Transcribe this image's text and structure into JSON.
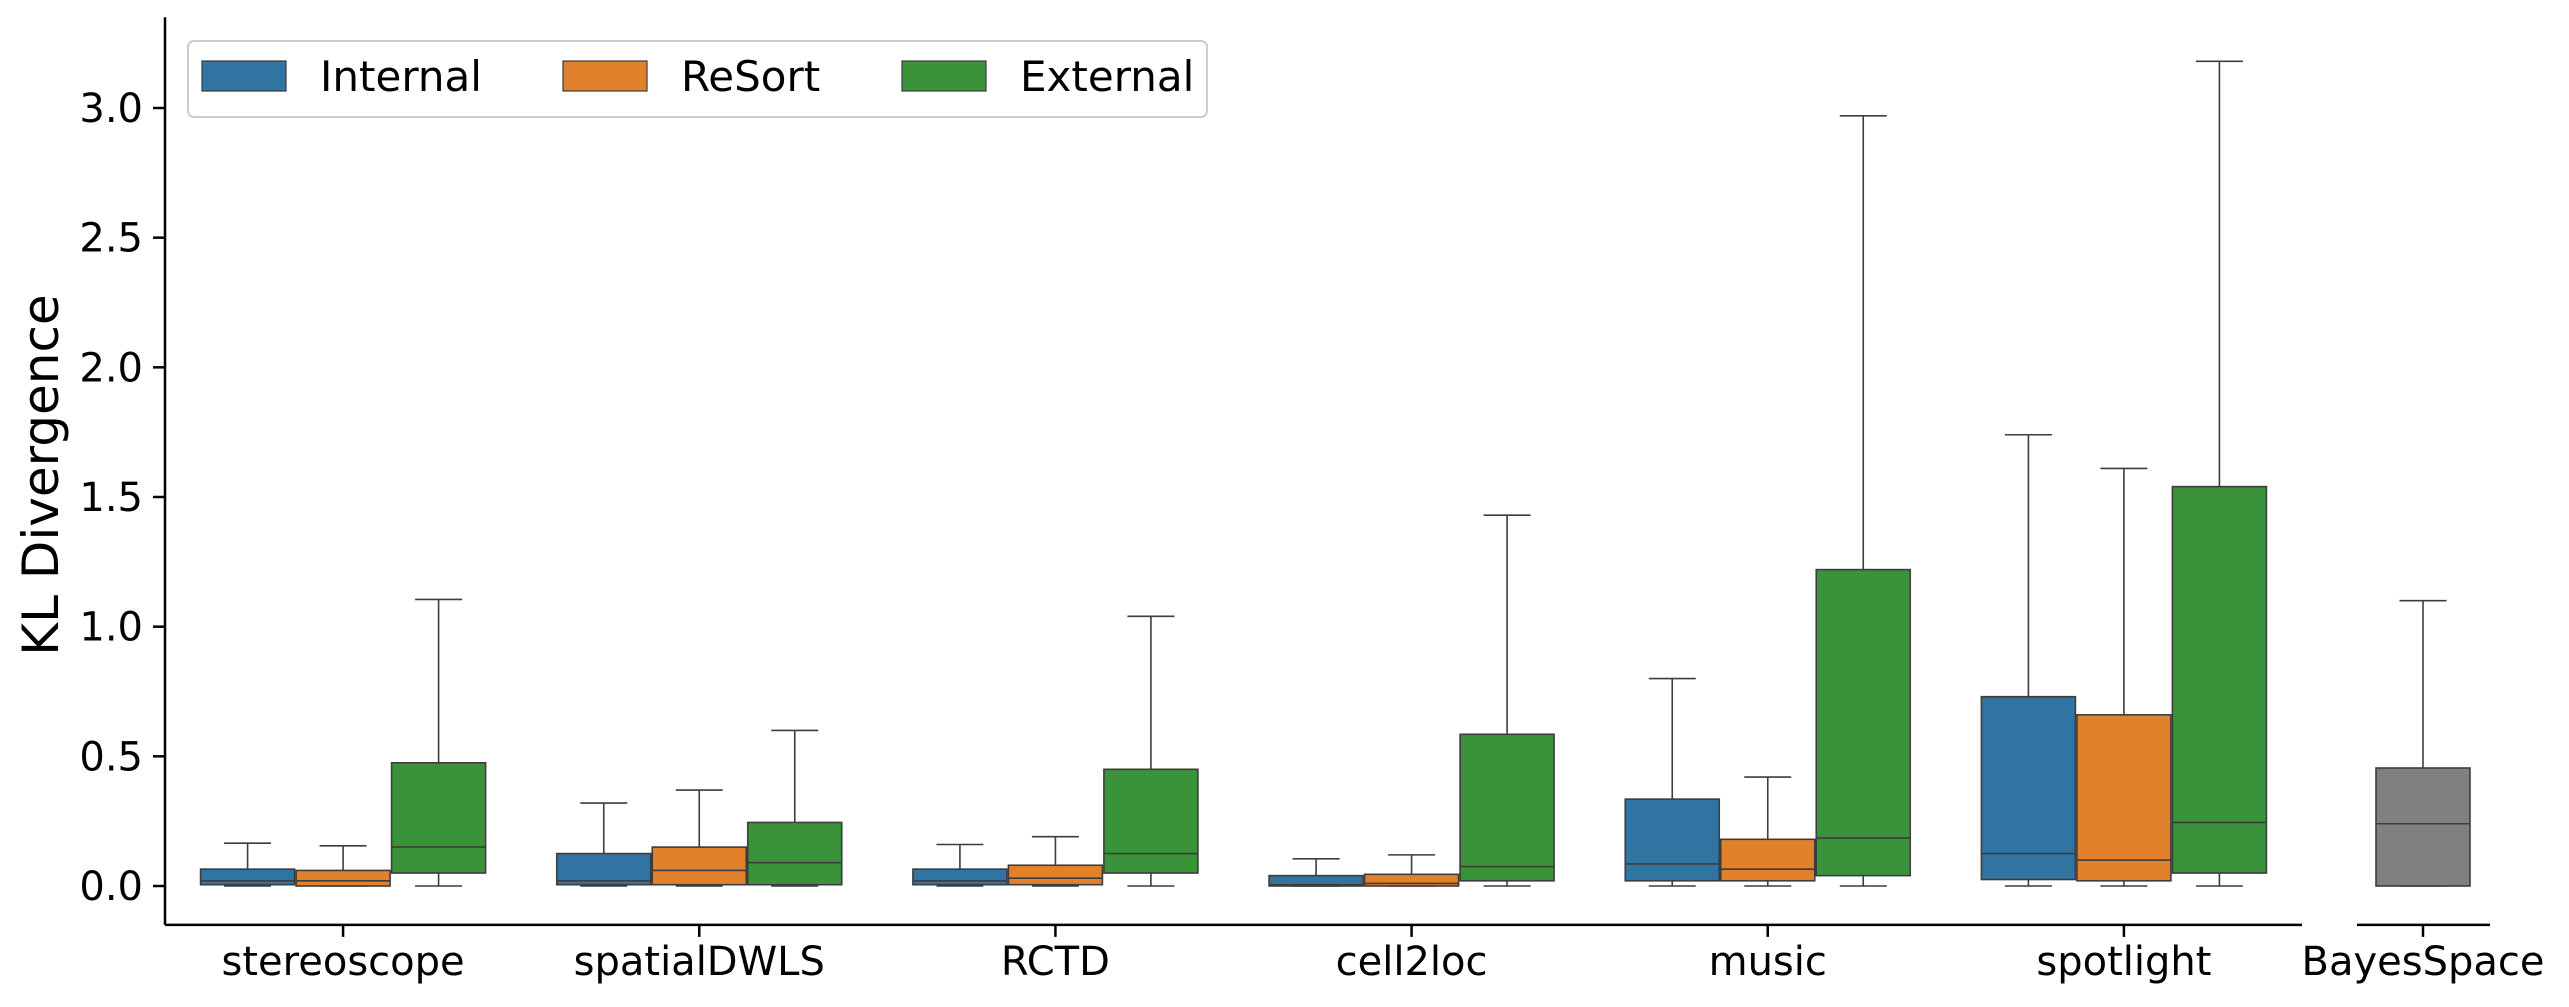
{
  "chart_data": {
    "type": "box",
    "ylabel": "KL Divergence",
    "ylim": [
      -0.15,
      3.35
    ],
    "yticks": [
      "0.0",
      "0.5",
      "1.0",
      "1.5",
      "2.0",
      "2.5",
      "3.0"
    ],
    "ytick_values": [
      0.0,
      0.5,
      1.0,
      1.5,
      2.0,
      2.5,
      3.0
    ],
    "grid": false,
    "legend": {
      "position": "top-left",
      "entries": [
        {
          "name": "Internal",
          "color": "#3274a1"
        },
        {
          "name": "ReSort",
          "color": "#e1812c"
        },
        {
          "name": "External",
          "color": "#3a923a"
        }
      ]
    },
    "categories": [
      "stereoscope",
      "spatialDWLS",
      "RCTD",
      "cell2loc",
      "music",
      "spotlight"
    ],
    "series": [
      {
        "name": "Internal",
        "color": "#3274a1",
        "boxes": [
          {
            "whislo": 0.0,
            "q1": 0.005,
            "med": 0.02,
            "q3": 0.065,
            "whishi": 0.165
          },
          {
            "whislo": 0.0,
            "q1": 0.005,
            "med": 0.02,
            "q3": 0.125,
            "whishi": 0.32
          },
          {
            "whislo": 0.0,
            "q1": 0.005,
            "med": 0.02,
            "q3": 0.065,
            "whishi": 0.16
          },
          {
            "whislo": 0.0,
            "q1": 0.0,
            "med": 0.005,
            "q3": 0.04,
            "whishi": 0.105
          },
          {
            "whislo": 0.0,
            "q1": 0.02,
            "med": 0.085,
            "q3": 0.335,
            "whishi": 0.8
          },
          {
            "whislo": 0.0,
            "q1": 0.025,
            "med": 0.125,
            "q3": 0.73,
            "whishi": 1.74
          }
        ]
      },
      {
        "name": "ReSort",
        "color": "#e1812c",
        "boxes": [
          {
            "whislo": 0.0,
            "q1": 0.0,
            "med": 0.02,
            "q3": 0.06,
            "whishi": 0.155
          },
          {
            "whislo": 0.0,
            "q1": 0.005,
            "med": 0.06,
            "q3": 0.15,
            "whishi": 0.37
          },
          {
            "whislo": 0.0,
            "q1": 0.005,
            "med": 0.03,
            "q3": 0.08,
            "whishi": 0.19
          },
          {
            "whislo": 0.0,
            "q1": 0.0,
            "med": 0.01,
            "q3": 0.045,
            "whishi": 0.12
          },
          {
            "whislo": 0.0,
            "q1": 0.02,
            "med": 0.065,
            "q3": 0.18,
            "whishi": 0.42
          },
          {
            "whislo": 0.0,
            "q1": 0.02,
            "med": 0.1,
            "q3": 0.66,
            "whishi": 1.61
          }
        ]
      },
      {
        "name": "External",
        "color": "#3a923a",
        "boxes": [
          {
            "whislo": 0.0,
            "q1": 0.05,
            "med": 0.15,
            "q3": 0.475,
            "whishi": 1.105
          },
          {
            "whislo": 0.0,
            "q1": 0.005,
            "med": 0.09,
            "q3": 0.245,
            "whishi": 0.6
          },
          {
            "whislo": 0.0,
            "q1": 0.05,
            "med": 0.125,
            "q3": 0.45,
            "whishi": 1.04
          },
          {
            "whislo": 0.0,
            "q1": 0.02,
            "med": 0.075,
            "q3": 0.585,
            "whishi": 1.43
          },
          {
            "whislo": 0.0,
            "q1": 0.04,
            "med": 0.185,
            "q3": 1.22,
            "whishi": 2.97
          },
          {
            "whislo": 0.0,
            "q1": 0.05,
            "med": 0.245,
            "q3": 1.54,
            "whishi": 3.18
          }
        ]
      }
    ],
    "extra_panel": {
      "category": "BayesSpace",
      "color": "#808080",
      "box": {
        "whislo": 0.0,
        "q1": 0.0,
        "med": 0.24,
        "q3": 0.455,
        "whishi": 1.1
      }
    }
  }
}
